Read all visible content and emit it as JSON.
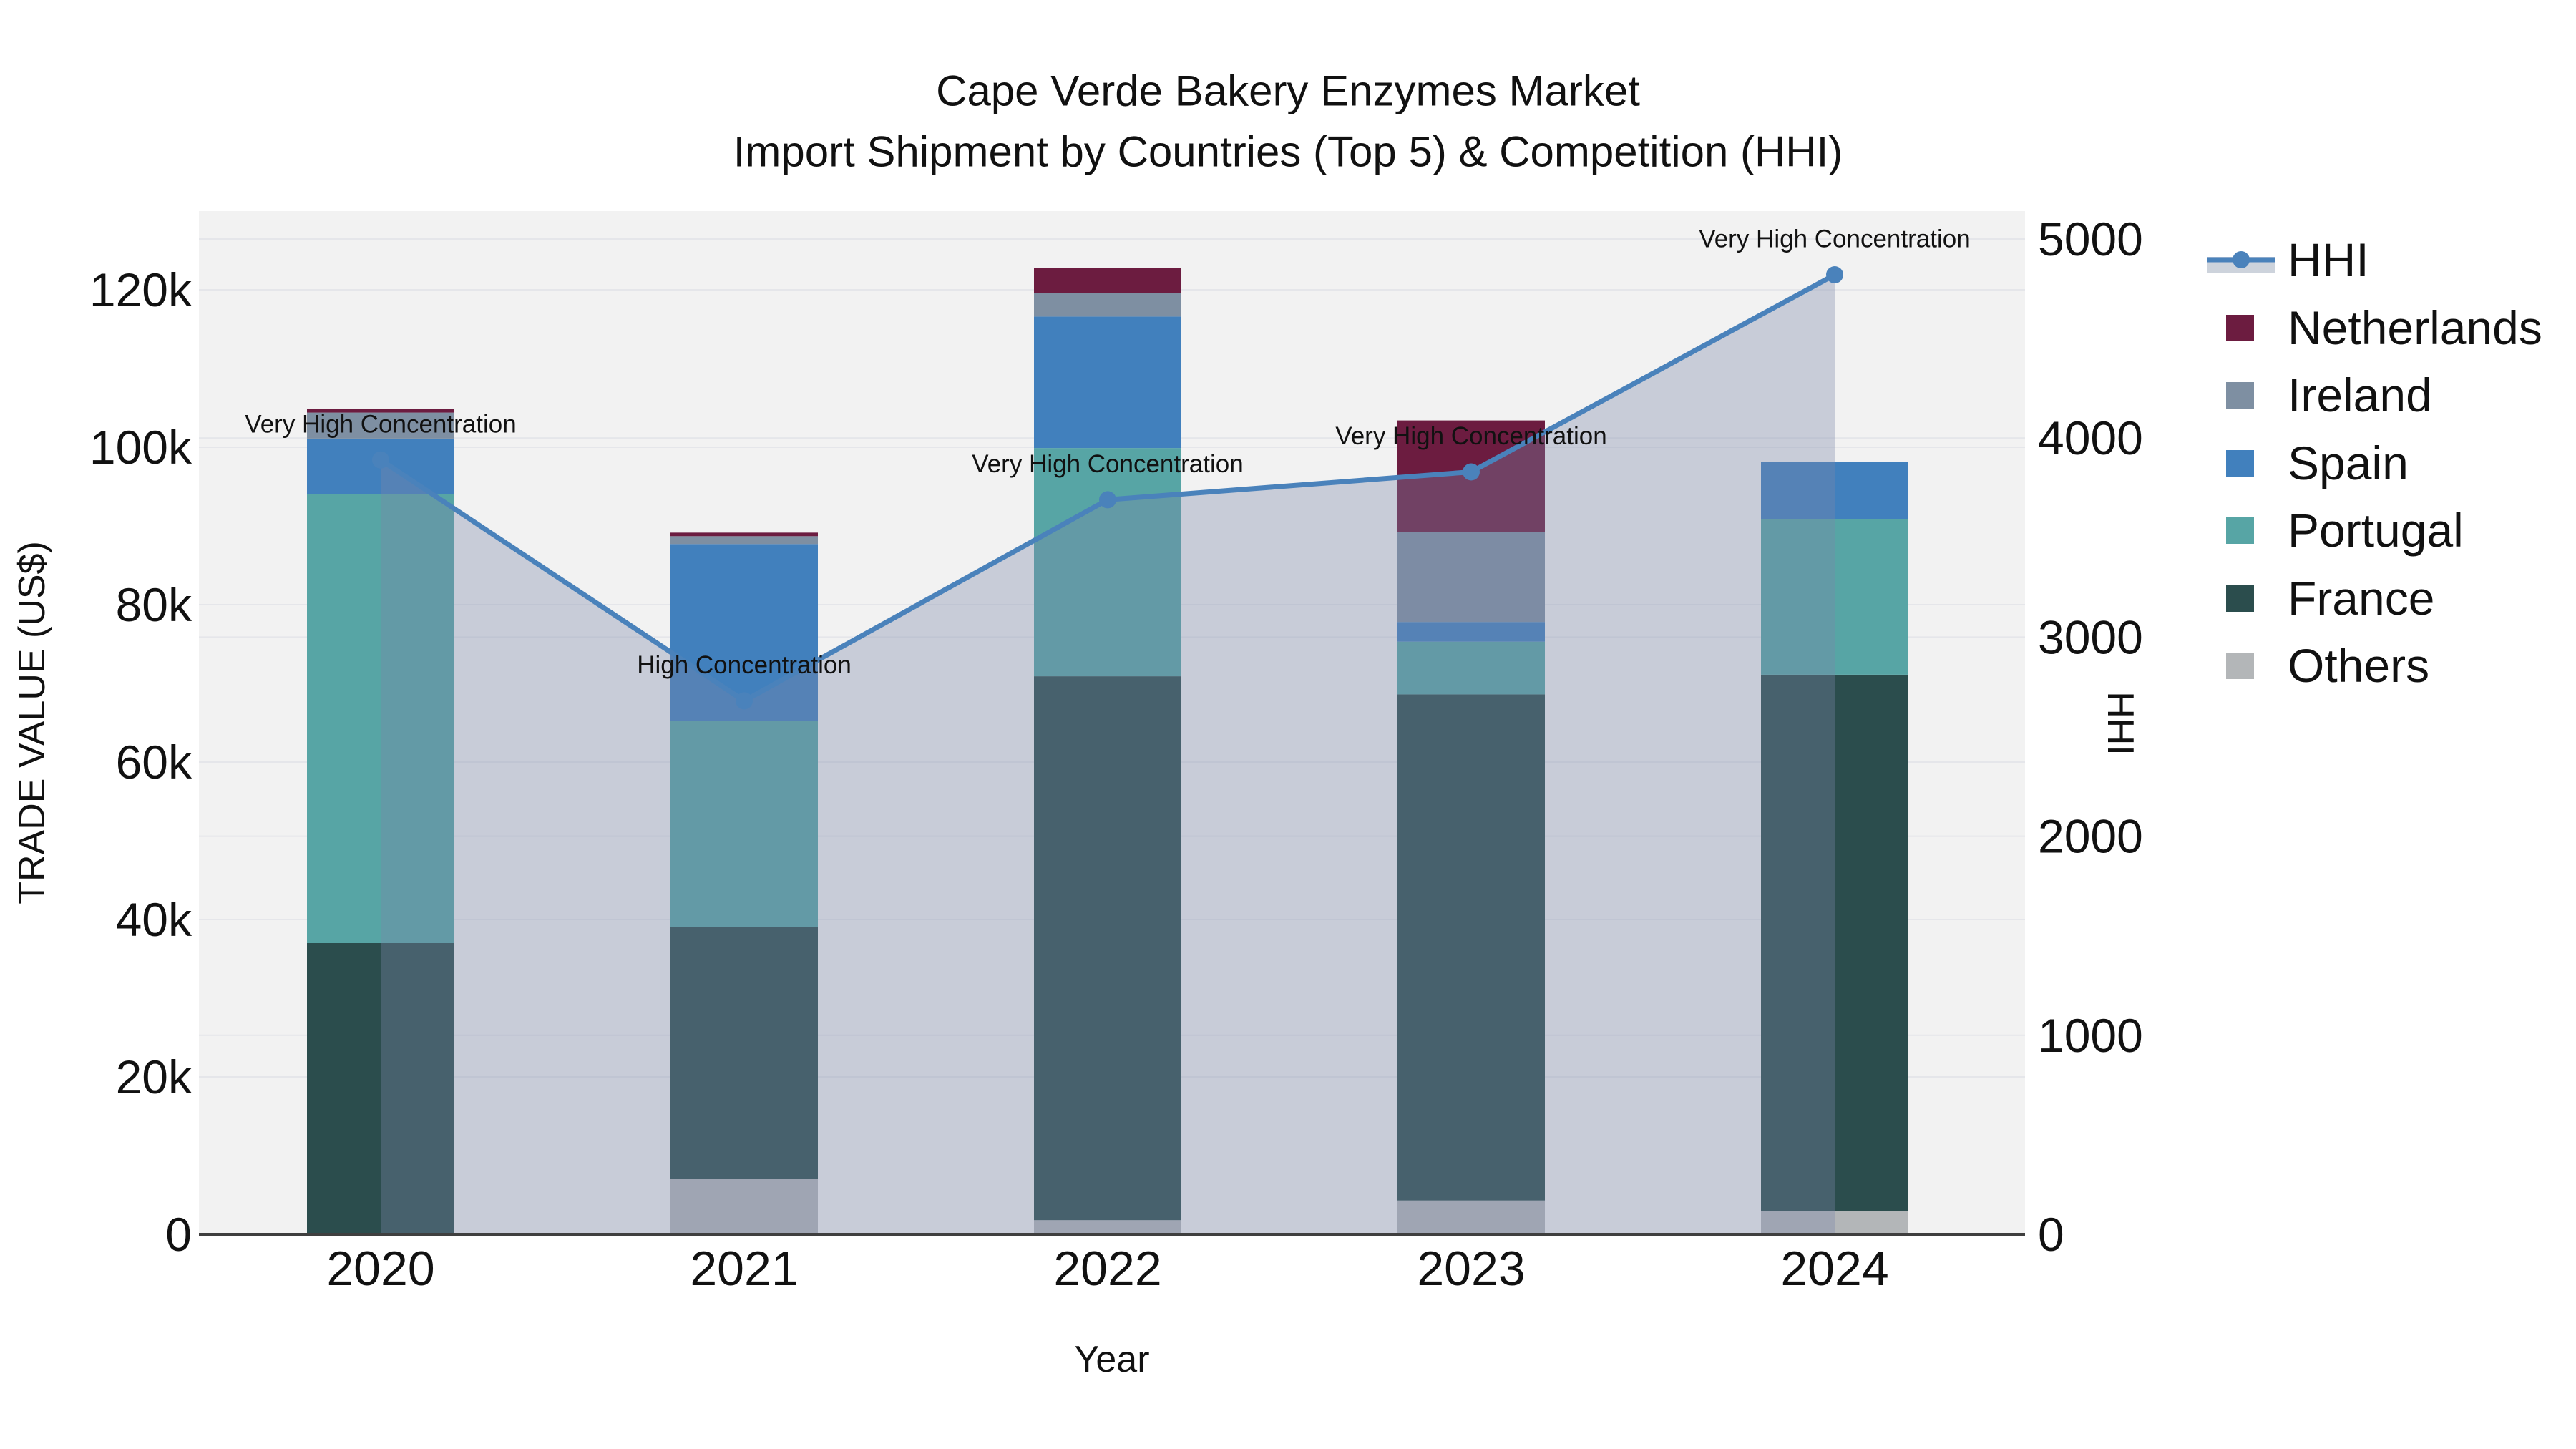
{
  "title": {
    "line1": "Cape Verde Bakery Enzymes Market",
    "line2": "Import Shipment by Countries (Top 5) & Competition (HHI)"
  },
  "axes": {
    "x": {
      "title": "Year",
      "categories": [
        "2020",
        "2021",
        "2022",
        "2023",
        "2024"
      ]
    },
    "left": {
      "title": "TRADE VALUE (US$)",
      "tick_labels": [
        "0",
        "20k",
        "40k",
        "60k",
        "80k",
        "100k",
        "120k"
      ],
      "tick_values": [
        0,
        20000,
        40000,
        60000,
        80000,
        100000,
        120000
      ],
      "range": [
        0,
        130000
      ]
    },
    "right": {
      "title": "HHI",
      "tick_labels": [
        "0",
        "1000",
        "2000",
        "3000",
        "4000",
        "5000"
      ],
      "tick_values": [
        0,
        1000,
        2000,
        3000,
        4000,
        5000
      ],
      "range": [
        0,
        5140
      ]
    }
  },
  "legend": {
    "items": [
      {
        "label": "HHI",
        "type": "line",
        "color": "#4A82BB",
        "band_color": "#CDD3DC"
      },
      {
        "label": "Netherlands",
        "type": "swatch",
        "color": "#6C1C40"
      },
      {
        "label": "Ireland",
        "type": "swatch",
        "color": "#7E8FA2"
      },
      {
        "label": "Spain",
        "type": "swatch",
        "color": "#4180BD"
      },
      {
        "label": "Portugal",
        "type": "swatch",
        "color": "#57A5A5"
      },
      {
        "label": "France",
        "type": "swatch",
        "color": "#2B4D4D"
      },
      {
        "label": "Others",
        "type": "swatch",
        "color": "#B3B6B8"
      }
    ]
  },
  "chart_data": {
    "type": "combo-stacked-bar-line",
    "categories": [
      "2020",
      "2021",
      "2022",
      "2023",
      "2024"
    ],
    "bar_unit": "US$",
    "bar_series": [
      {
        "name": "Others",
        "color": "#B3B6B8",
        "values": [
          0,
          7000,
          1800,
          4300,
          3000
        ]
      },
      {
        "name": "France",
        "color": "#2B4D4D",
        "values": [
          37000,
          32000,
          69100,
          64300,
          68100
        ]
      },
      {
        "name": "Portugal",
        "color": "#57A5A5",
        "values": [
          57000,
          26200,
          29000,
          6700,
          19800
        ]
      },
      {
        "name": "Spain",
        "color": "#4180BD",
        "values": [
          7100,
          22500,
          16700,
          2500,
          7200
        ]
      },
      {
        "name": "Ireland",
        "color": "#7E8FA2",
        "values": [
          3300,
          1000,
          3000,
          11400,
          0
        ]
      },
      {
        "name": "Netherlands",
        "color": "#6C1C40",
        "values": [
          450,
          450,
          3200,
          14200,
          0
        ]
      }
    ],
    "line_series": {
      "name": "HHI",
      "color": "#4A82BB",
      "fill_color": "rgba(122,136,170,0.35)",
      "values": [
        3890,
        2680,
        3690,
        3830,
        4820
      ]
    },
    "annotations": [
      {
        "year": "2020",
        "text": "Very High Concentration"
      },
      {
        "year": "2021",
        "text": "High Concentration"
      },
      {
        "year": "2022",
        "text": "Very High Concentration"
      },
      {
        "year": "2023",
        "text": "Very High Concentration"
      },
      {
        "year": "2024",
        "text": "Very High Concentration"
      }
    ],
    "legend_position": "right",
    "grid": true
  },
  "colors": {
    "plot_bg": "#F2F2F2",
    "figure_bg": "#FFFFFF",
    "gridline": "#E5E6EA",
    "axis_line": "#3F3F3F",
    "text": "#111111"
  }
}
